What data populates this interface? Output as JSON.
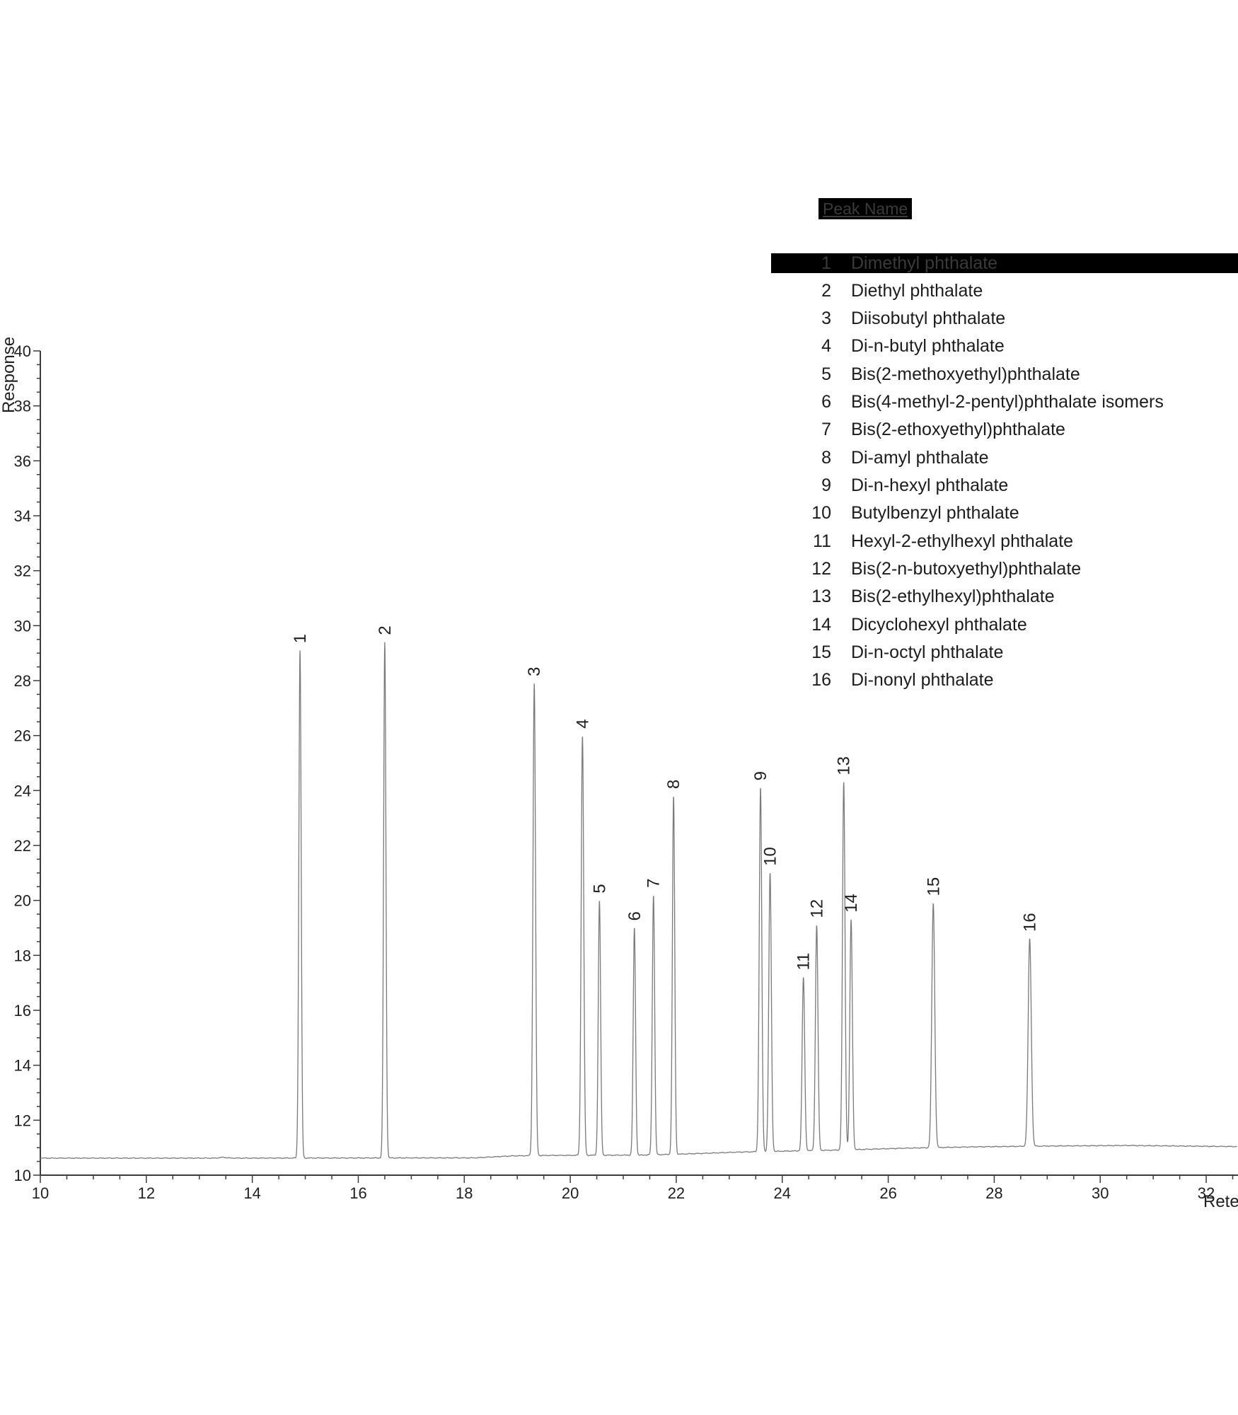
{
  "legend": {
    "header": "Peak Name",
    "rows": [
      {
        "number": "1",
        "name": "Dimethyl phthalate",
        "highlighted": true
      },
      {
        "number": "2",
        "name": "Diethyl phthalate",
        "highlighted": false
      },
      {
        "number": "3",
        "name": "Diisobutyl phthalate",
        "highlighted": false
      },
      {
        "number": "4",
        "name": "Di-n-butyl phthalate",
        "highlighted": false
      },
      {
        "number": "5",
        "name": "Bis(2-methoxyethyl)phthalate",
        "highlighted": false
      },
      {
        "number": "6",
        "name": "Bis(4-methyl-2-pentyl)phthalate isomers",
        "highlighted": false
      },
      {
        "number": "7",
        "name": "Bis(2-ethoxyethyl)phthalate",
        "highlighted": false
      },
      {
        "number": "8",
        "name": "Di-amyl phthalate",
        "highlighted": false
      },
      {
        "number": "9",
        "name": "Di-n-hexyl phthalate",
        "highlighted": false
      },
      {
        "number": "10",
        "name": "Butylbenzyl phthalate",
        "highlighted": false
      },
      {
        "number": "11",
        "name": "Hexyl-2-ethylhexyl phthalate",
        "highlighted": false
      },
      {
        "number": "12",
        "name": "Bis(2-n-butoxyethyl)phthalate",
        "highlighted": false
      },
      {
        "number": "13",
        "name": "Bis(2-ethylhexyl)phthalate",
        "highlighted": false
      },
      {
        "number": "14",
        "name": "Dicyclohexyl phthalate",
        "highlighted": false
      },
      {
        "number": "15",
        "name": "Di-n-octyl phthalate",
        "highlighted": false
      },
      {
        "number": "16",
        "name": "Di-nonyl phthalate",
        "highlighted": false
      }
    ]
  },
  "chart_data": {
    "type": "line",
    "title": "",
    "xlabel": "Retention Time",
    "ylabel": "Response",
    "xlim": [
      10,
      32.6
    ],
    "ylim": [
      10,
      40
    ],
    "x_major_tick_step": 2,
    "x_minor_tick_step": 0.5,
    "y_major_tick_step": 2,
    "y_minor_tick_step": 0.5,
    "x_tick_labels": [
      10,
      12,
      14,
      16,
      18,
      20,
      22,
      24,
      26,
      28,
      30,
      32
    ],
    "y_tick_labels": [
      10,
      12,
      14,
      16,
      18,
      20,
      22,
      24,
      26,
      28,
      30,
      32,
      34,
      36,
      38,
      40
    ],
    "grid": false,
    "baseline_points": [
      [
        10.0,
        10.62
      ],
      [
        13.3,
        10.62
      ],
      [
        13.45,
        10.65
      ],
      [
        13.6,
        10.62
      ],
      [
        18.2,
        10.63
      ],
      [
        18.9,
        10.7
      ],
      [
        19.6,
        10.72
      ],
      [
        21.3,
        10.73
      ],
      [
        22.0,
        10.76
      ],
      [
        22.6,
        10.8
      ],
      [
        23.2,
        10.84
      ],
      [
        24.2,
        10.88
      ],
      [
        25.2,
        10.92
      ],
      [
        26.3,
        10.98
      ],
      [
        27.6,
        11.03
      ],
      [
        29.0,
        11.06
      ],
      [
        30.5,
        11.08
      ],
      [
        32.6,
        11.04
      ]
    ],
    "peaks": [
      {
        "number": "1",
        "rt": 14.9,
        "apex": 29.1,
        "sigma": 0.022
      },
      {
        "number": "2",
        "rt": 16.5,
        "apex": 29.4,
        "sigma": 0.022
      },
      {
        "number": "3",
        "rt": 19.32,
        "apex": 27.9,
        "sigma": 0.024
      },
      {
        "number": "4",
        "rt": 20.23,
        "apex": 26.0,
        "sigma": 0.024
      },
      {
        "number": "5",
        "rt": 20.55,
        "apex": 20.0,
        "sigma": 0.022
      },
      {
        "number": "6",
        "rt": 21.21,
        "apex": 19.0,
        "sigma": 0.022
      },
      {
        "number": "7",
        "rt": 21.57,
        "apex": 20.2,
        "sigma": 0.022
      },
      {
        "number": "8",
        "rt": 21.95,
        "apex": 23.8,
        "sigma": 0.022
      },
      {
        "number": "9",
        "rt": 23.59,
        "apex": 24.1,
        "sigma": 0.024
      },
      {
        "number": "10",
        "rt": 23.77,
        "apex": 21.0,
        "sigma": 0.024
      },
      {
        "number": "11",
        "rt": 24.4,
        "apex": 17.2,
        "sigma": 0.024
      },
      {
        "number": "12",
        "rt": 24.65,
        "apex": 19.1,
        "sigma": 0.024
      },
      {
        "number": "13",
        "rt": 25.16,
        "apex": 24.3,
        "sigma": 0.024
      },
      {
        "number": "14",
        "rt": 25.3,
        "apex": 19.3,
        "sigma": 0.024
      },
      {
        "number": "15",
        "rt": 26.85,
        "apex": 19.9,
        "sigma": 0.028
      },
      {
        "number": "16",
        "rt": 28.67,
        "apex": 18.6,
        "sigma": 0.03
      }
    ]
  },
  "colors": {
    "trace": "#7a7a7a",
    "axis": "#3c3c3c",
    "tick_text": "#1f1f1f",
    "peak_label_text": "#1f1f1f",
    "highlight_bg": "#000000",
    "highlight_text": "#3a3a3a"
  }
}
